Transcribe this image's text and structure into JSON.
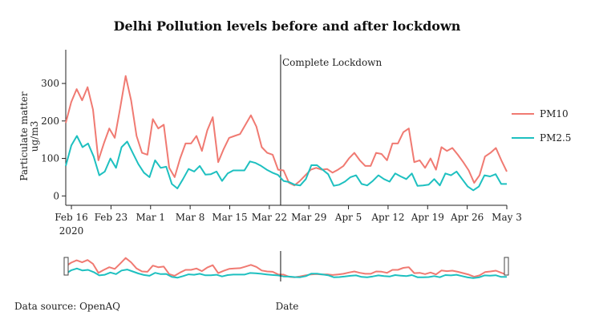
{
  "chart_data": {
    "type": "line",
    "title": "Delhi Pollution levels before and after lockdown",
    "ylabel": "Particulate matter ug/m3",
    "xlabel": "Date",
    "source": "Data source: OpenAQ",
    "annotation": "Complete Lockdown",
    "annotation_date": "2020-03-24",
    "x_start": "2020-02-15",
    "x_end": "2020-05-03",
    "ylim": [
      -25,
      390
    ],
    "yticks": [
      0,
      100,
      200,
      300
    ],
    "xticks": [
      {
        "date": "2020-02-16",
        "label": "Feb 16",
        "sub": "2020"
      },
      {
        "date": "2020-02-23",
        "label": "Feb 23"
      },
      {
        "date": "2020-03-01",
        "label": "Mar 1"
      },
      {
        "date": "2020-03-08",
        "label": "Mar 8"
      },
      {
        "date": "2020-03-15",
        "label": "Mar 15"
      },
      {
        "date": "2020-03-22",
        "label": "Mar 22"
      },
      {
        "date": "2020-03-29",
        "label": "Mar 29"
      },
      {
        "date": "2020-04-05",
        "label": "Apr 5"
      },
      {
        "date": "2020-04-12",
        "label": "Apr 12"
      },
      {
        "date": "2020-04-19",
        "label": "Apr 19"
      },
      {
        "date": "2020-04-26",
        "label": "Apr 26"
      },
      {
        "date": "2020-05-03",
        "label": "May 3"
      }
    ],
    "legend_position": "right",
    "range_slider": true,
    "series": [
      {
        "name": "PM10",
        "color": "#f07a72",
        "values": [
          195,
          250,
          285,
          255,
          290,
          230,
          95,
          140,
          180,
          155,
          235,
          320,
          255,
          160,
          115,
          110,
          205,
          180,
          190,
          75,
          50,
          100,
          140,
          140,
          160,
          120,
          175,
          210,
          90,
          125,
          155,
          160,
          165,
          190,
          215,
          185,
          130,
          115,
          110,
          70,
          68,
          35,
          28,
          40,
          55,
          70,
          75,
          70,
          72,
          62,
          70,
          80,
          100,
          115,
          95,
          80,
          80,
          115,
          112,
          95,
          140,
          140,
          170,
          180,
          90,
          95,
          75,
          100,
          70,
          130,
          120,
          128,
          110,
          90,
          68,
          35,
          55,
          105,
          115,
          128,
          95,
          65
        ],
        "x_dates": []
      },
      {
        "name": "PM2.5",
        "color": "#1ec0c0",
        "values": [
          80,
          135,
          160,
          130,
          140,
          105,
          55,
          65,
          100,
          75,
          130,
          145,
          115,
          85,
          62,
          50,
          95,
          75,
          78,
          32,
          20,
          45,
          72,
          65,
          80,
          57,
          58,
          65,
          40,
          60,
          68,
          68,
          68,
          92,
          88,
          80,
          70,
          62,
          56,
          40,
          37,
          30,
          28,
          45,
          82,
          82,
          70,
          58,
          27,
          30,
          38,
          50,
          55,
          32,
          28,
          40,
          55,
          45,
          38,
          60,
          52,
          45,
          60,
          27,
          28,
          30,
          45,
          28,
          60,
          55,
          65,
          45,
          25,
          15,
          25,
          55,
          52,
          58,
          32,
          32
        ],
        "x_dates": []
      }
    ]
  }
}
